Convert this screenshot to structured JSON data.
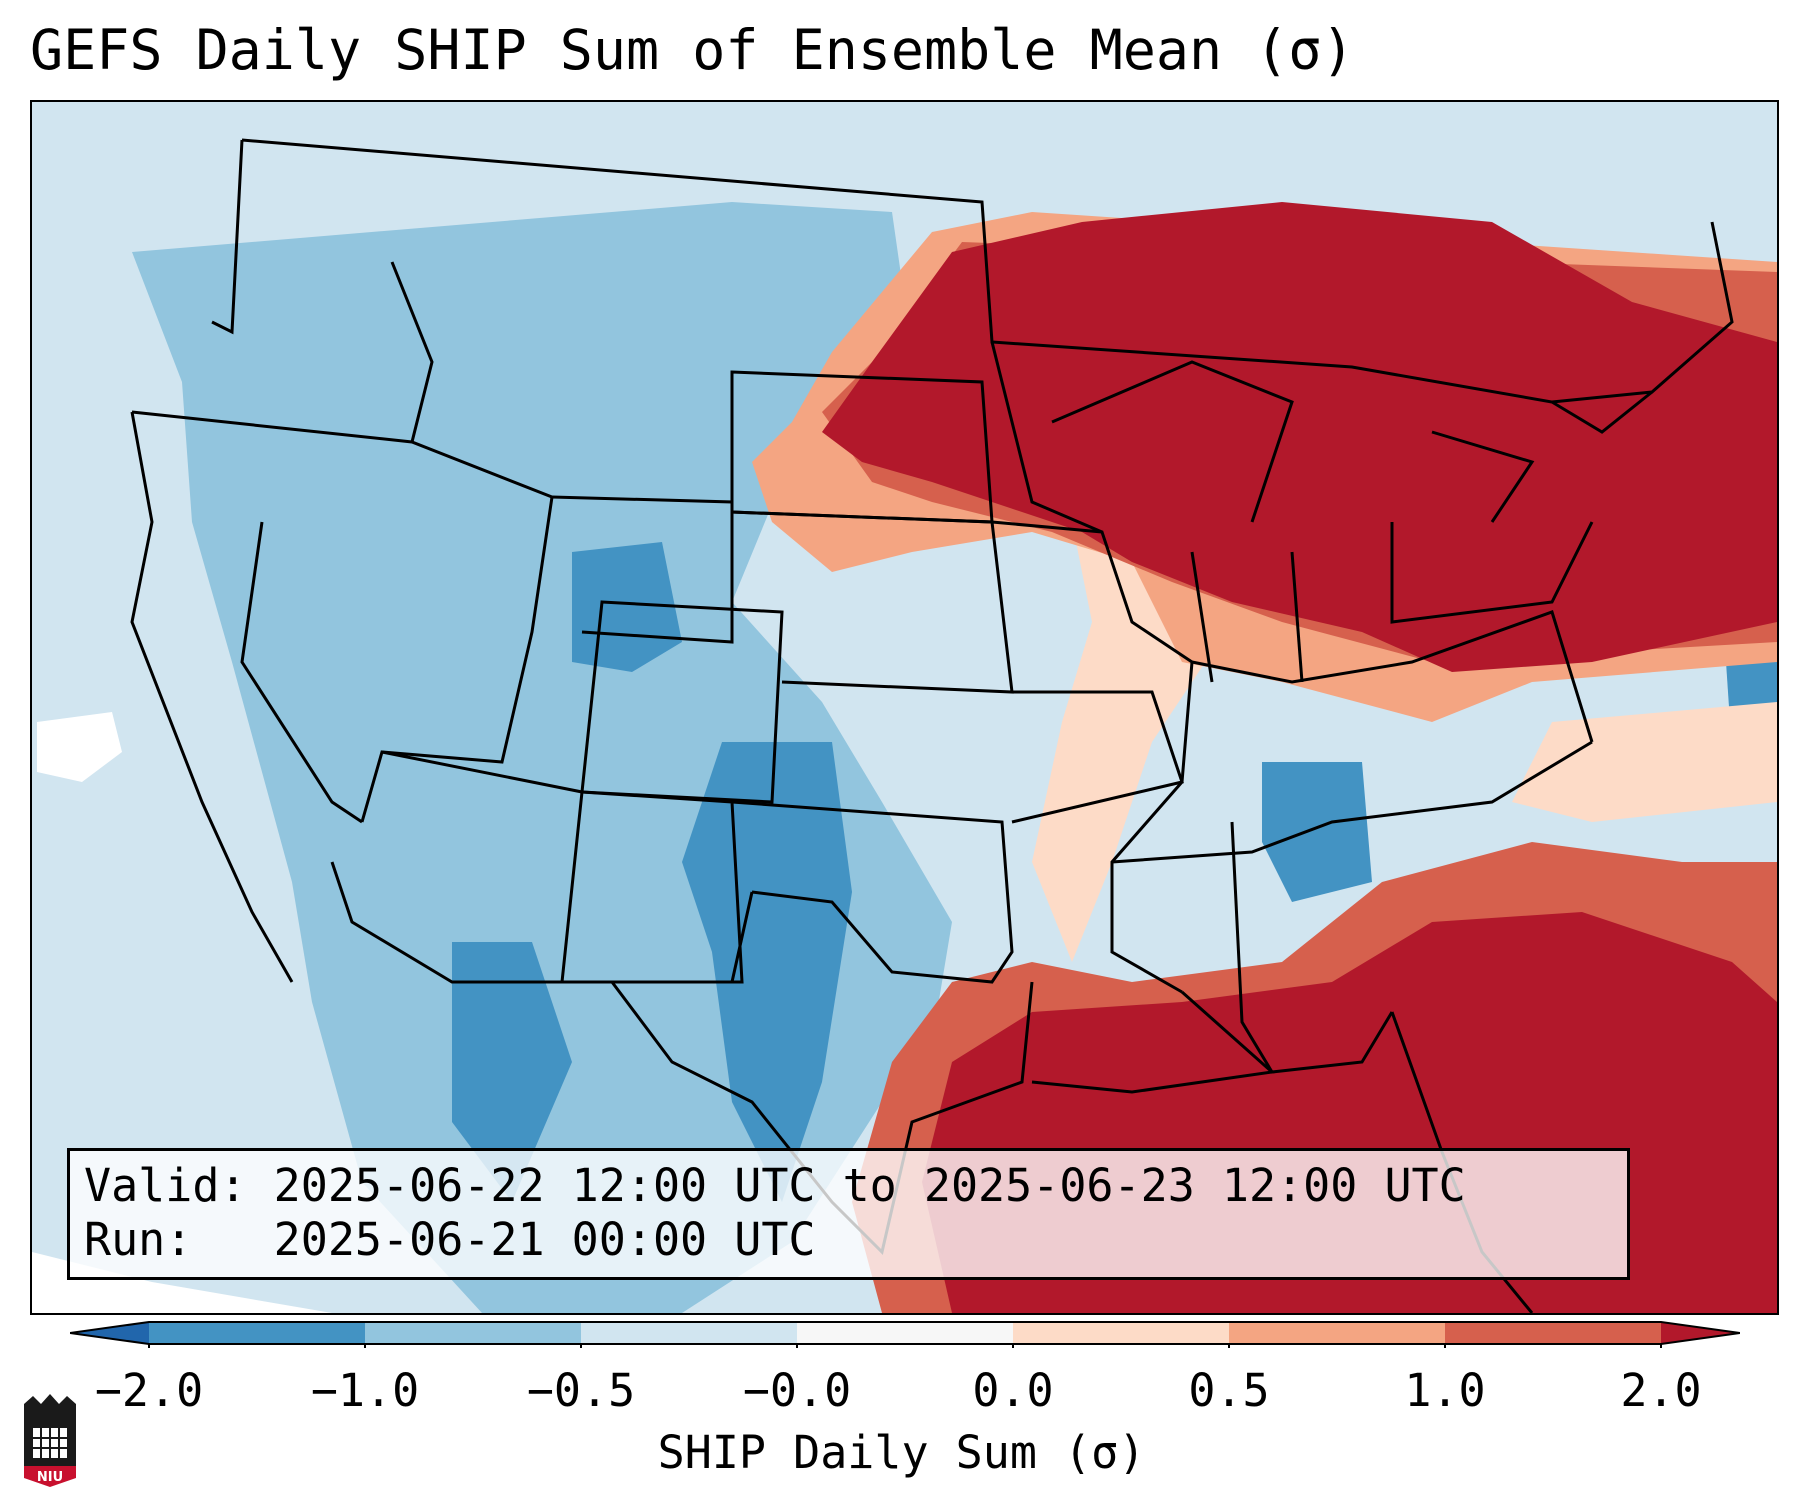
{
  "title": "GEFS Daily SHIP Sum of Ensemble Mean (σ)",
  "info": {
    "valid_label": "Valid:",
    "valid_value": "2025-06-22 12:00 UTC to 2025-06-23 12:00 UTC",
    "run_label": "Run:",
    "run_value": "2025-06-21 00:00 UTC"
  },
  "colorbar": {
    "label": "SHIP Daily Sum (σ)",
    "tick_labels": [
      "−2.0",
      "−1.0",
      "−0.5",
      "−0.0",
      "0.0",
      "0.5",
      "1.0",
      "2.0"
    ],
    "colors": [
      "#2166ac",
      "#4393c3",
      "#92c5de",
      "#d1e5f0",
      "#f7f7f7",
      "#fddbc7",
      "#f4a582",
      "#d6604d",
      "#b2182b"
    ]
  },
  "logo": {
    "text": "NIU",
    "color": "#c8102e"
  },
  "map": {
    "projection": "Lambert conformal, contiguous United States",
    "field": "GEFS ensemble mean daily SHIP sum (standard deviations)",
    "features": [
      "state-boundaries",
      "country-boundaries",
      "coastlines",
      "great-lakes"
    ],
    "regions": [
      {
        "name": "upper-midwest-great-lakes-northeast",
        "category": "> 2.0"
      },
      {
        "name": "gulf-of-mexico-and-southeast-coast-atlantic",
        "category": "> 2.0"
      },
      {
        "name": "central-plains-transition",
        "category": "0.5 to 2.0"
      },
      {
        "name": "ohio-valley",
        "category": "0.5 to 1.0"
      },
      {
        "name": "mississippi-valley",
        "category": "0.0 to 0.5"
      },
      {
        "name": "texas-colorado-rockies",
        "category": "-1.0 to -2.0"
      },
      {
        "name": "western-us",
        "category": "-0.5 to -1.0"
      },
      {
        "name": "pacific-ocean",
        "category": "0.0 to -0.5"
      }
    ]
  }
}
